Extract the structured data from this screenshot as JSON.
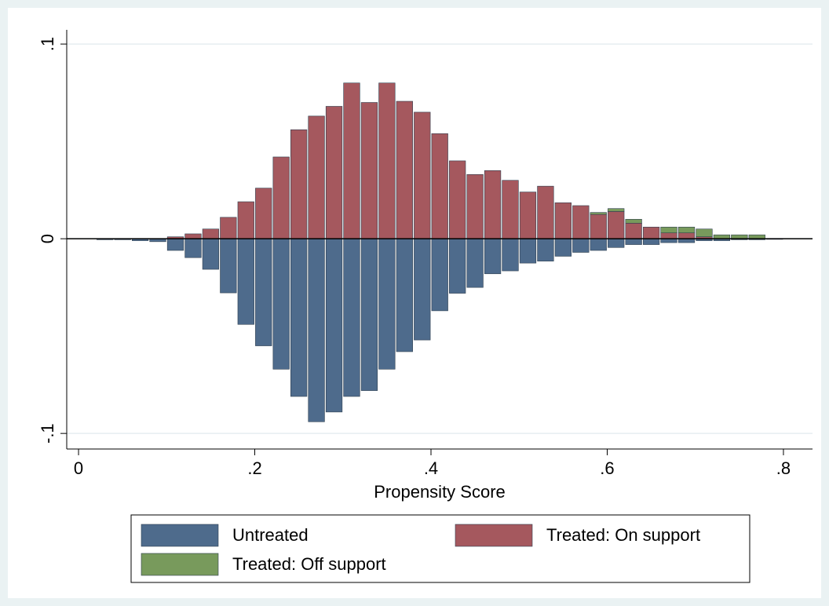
{
  "chart_data": {
    "type": "bar",
    "stacked": true,
    "x_label": "Propensity Score",
    "x": [
      0.03,
      0.05,
      0.07,
      0.09,
      0.11,
      0.13,
      0.15,
      0.17,
      0.19,
      0.21,
      0.23,
      0.25,
      0.27,
      0.29,
      0.31,
      0.33,
      0.35,
      0.37,
      0.39,
      0.41,
      0.43,
      0.45,
      0.47,
      0.49,
      0.51,
      0.53,
      0.55,
      0.57,
      0.59,
      0.61,
      0.63,
      0.65,
      0.67,
      0.69,
      0.71,
      0.73,
      0.75,
      0.77,
      0.79
    ],
    "series": [
      {
        "name": "Untreated",
        "color": "#4e6b8c",
        "values": [
          -0.0005,
          -0.0005,
          -0.001,
          -0.0015,
          -0.006,
          -0.0097,
          -0.0157,
          -0.0278,
          -0.044,
          -0.055,
          -0.067,
          -0.081,
          -0.094,
          -0.089,
          -0.081,
          -0.078,
          -0.067,
          -0.058,
          -0.052,
          -0.037,
          -0.028,
          -0.025,
          -0.018,
          -0.0165,
          -0.0125,
          -0.0115,
          -0.009,
          -0.007,
          -0.006,
          -0.0045,
          -0.003,
          -0.003,
          -0.002,
          -0.002,
          -0.001,
          -0.001,
          -0.0005,
          -0.0005,
          -0.0003
        ]
      },
      {
        "name": "Treated: On support",
        "color": "#a5585e",
        "values": [
          0,
          0,
          0,
          0,
          0.001,
          0.0025,
          0.005,
          0.011,
          0.019,
          0.026,
          0.042,
          0.056,
          0.063,
          0.068,
          0.08,
          0.07,
          0.08,
          0.0706,
          0.065,
          0.054,
          0.04,
          0.033,
          0.035,
          0.03,
          0.024,
          0.027,
          0.0185,
          0.017,
          0.0125,
          0.014,
          0.008,
          0.006,
          0.003,
          0.003,
          0.001,
          0,
          0,
          0,
          0
        ]
      },
      {
        "name": "Treated: Off support",
        "color": "#789a5c",
        "values": [
          0,
          0,
          0,
          0,
          0,
          0,
          0,
          0,
          0,
          0,
          0,
          0,
          0,
          0,
          0,
          0,
          0,
          0,
          0,
          0,
          0,
          0,
          0,
          0,
          0,
          0,
          0,
          0,
          0.001,
          0.0015,
          0.002,
          0,
          0.003,
          0.003,
          0.004,
          0.002,
          0.002,
          0.002,
          0
        ]
      }
    ],
    "xlim": [
      -0.0134,
      0.833
    ],
    "ylim": [
      -0.108,
      0.1073
    ],
    "xticks": [
      0,
      {
        "value": 0.2,
        "label": ".2"
      },
      {
        "value": 0.4,
        "label": ".4"
      },
      {
        "value": 0.6,
        "label": ".6"
      },
      {
        "value": 0.8,
        "label": ".8"
      }
    ],
    "yticks": [
      {
        "value": -0.1,
        "label": "-.1"
      },
      0,
      {
        "value": 0.1,
        "label": ".1"
      }
    ],
    "yline": 0,
    "grid": true
  }
}
